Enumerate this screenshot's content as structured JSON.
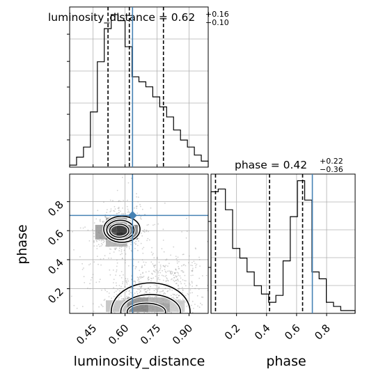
{
  "colors": {
    "truth": "#4682b4",
    "hist": "#000000",
    "grid": "#b0b0b0",
    "points": "#9a9a9a"
  },
  "chart_data": {
    "type": "corner",
    "parameters": [
      "luminosity_distance",
      "phase"
    ],
    "truths": {
      "luminosity_distance": 0.635,
      "phase": 0.705
    },
    "titles": [
      {
        "param": "luminosity_distance",
        "text": "luminosity_distance = 0.62",
        "sup": "+0.16",
        "sub": "−0.10"
      },
      {
        "param": "phase",
        "text": "phase = 0.42",
        "sup": "+0.22",
        "sub": "−0.36"
      }
    ],
    "axis_labels": {
      "x": [
        "luminosity_distance",
        "phase"
      ],
      "y": "phase"
    },
    "luminosity_distance": {
      "range": [
        0.34,
        0.99
      ],
      "ticks": [
        0.45,
        0.6,
        0.75,
        0.9
      ],
      "tick_labels": [
        "0.45",
        "0.60",
        "0.75",
        "0.90"
      ],
      "quantiles": [
        0.52,
        0.62,
        0.78
      ],
      "hist_edges": [
        0.34,
        0.3725,
        0.405,
        0.4375,
        0.47,
        0.5025,
        0.535,
        0.5675,
        0.6,
        0.6325,
        0.665,
        0.6975,
        0.73,
        0.7625,
        0.795,
        0.8275,
        0.86,
        0.8925,
        0.925,
        0.9575,
        0.99
      ],
      "hist_counts": [
        2,
        10,
        20,
        55,
        105,
        138,
        152,
        146,
        120,
        90,
        85,
        80,
        70,
        60,
        50,
        37,
        27,
        20,
        12,
        6
      ]
    },
    "phase": {
      "range": [
        0.03,
        0.99
      ],
      "ticks": [
        0.2,
        0.4,
        0.6,
        0.8
      ],
      "tick_labels": [
        "0.2",
        "0.4",
        "0.6",
        "0.8"
      ],
      "quantiles": [
        0.06,
        0.42,
        0.64
      ],
      "hist_edges": [
        0.03,
        0.078,
        0.126,
        0.174,
        0.222,
        0.27,
        0.318,
        0.366,
        0.414,
        0.462,
        0.51,
        0.558,
        0.606,
        0.654,
        0.702,
        0.75,
        0.798,
        0.846,
        0.894,
        0.942,
        0.99
      ],
      "hist_counts": [
        88,
        90,
        75,
        47,
        40,
        30,
        20,
        14,
        8,
        13,
        38,
        70,
        96,
        82,
        30,
        25,
        8,
        5,
        2,
        2
      ]
    },
    "density_2d": {
      "blobs": [
        {
          "x": 0.565,
          "y": 0.58,
          "sx": 0.05,
          "sy": 0.055,
          "n": 520
        },
        {
          "x": 0.72,
          "y": 0.1,
          "sx": 0.1,
          "sy": 0.07,
          "n": 560
        },
        {
          "x": 0.78,
          "y": 0.3,
          "sx": 0.1,
          "sy": 0.06,
          "n": 200
        },
        {
          "x": 0.6,
          "y": 0.7,
          "sx": 0.07,
          "sy": 0.08,
          "n": 110
        },
        {
          "x": 0.62,
          "y": 0.3,
          "sx": 0.18,
          "sy": 0.22,
          "n": 230
        }
      ],
      "shade_cells": [
        {
          "x0": 0.51,
          "x1": 0.56,
          "y0": 0.59,
          "y1": 0.64,
          "g": 50
        },
        {
          "x0": 0.56,
          "x1": 0.61,
          "y0": 0.59,
          "y1": 0.64,
          "g": 40
        },
        {
          "x0": 0.51,
          "x1": 0.56,
          "y0": 0.54,
          "y1": 0.59,
          "g": 70
        },
        {
          "x0": 0.56,
          "x1": 0.61,
          "y0": 0.54,
          "y1": 0.59,
          "g": 20
        },
        {
          "x0": 0.61,
          "x1": 0.66,
          "y0": 0.54,
          "y1": 0.59,
          "g": 110
        },
        {
          "x0": 0.46,
          "x1": 0.51,
          "y0": 0.54,
          "y1": 0.64,
          "g": 150
        },
        {
          "x0": 0.61,
          "x1": 0.66,
          "y0": 0.59,
          "y1": 0.64,
          "g": 120
        },
        {
          "x0": 0.51,
          "x1": 0.61,
          "y0": 0.64,
          "y1": 0.69,
          "g": 150
        },
        {
          "x0": 0.51,
          "x1": 0.61,
          "y0": 0.49,
          "y1": 0.54,
          "g": 170
        },
        {
          "x0": 0.61,
          "x1": 0.71,
          "y0": 0.04,
          "y1": 0.1,
          "g": 120
        },
        {
          "x0": 0.71,
          "x1": 0.81,
          "y0": 0.04,
          "y1": 0.1,
          "g": 150
        },
        {
          "x0": 0.61,
          "x1": 0.71,
          "y0": 0.1,
          "y1": 0.14,
          "g": 140
        },
        {
          "x0": 0.71,
          "x1": 0.81,
          "y0": 0.1,
          "y1": 0.14,
          "g": 170
        },
        {
          "x0": 0.51,
          "x1": 0.61,
          "y0": 0.04,
          "y1": 0.12,
          "g": 190
        },
        {
          "x0": 0.81,
          "x1": 0.88,
          "y0": 0.04,
          "y1": 0.12,
          "g": 200
        }
      ],
      "contours": [
        {
          "x": 0.573,
          "y": 0.6,
          "rx": 0.045,
          "ry": 0.045
        },
        {
          "x": 0.578,
          "y": 0.605,
          "rx": 0.064,
          "ry": 0.067
        },
        {
          "x": 0.585,
          "y": 0.61,
          "rx": 0.085,
          "ry": 0.09
        },
        {
          "x": 0.7,
          "y": 0.04,
          "rx": 0.09,
          "ry": 0.06
        },
        {
          "x": 0.72,
          "y": 0.04,
          "rx": 0.14,
          "ry": 0.12
        },
        {
          "x": 0.72,
          "y": 0.04,
          "rx": 0.185,
          "ry": 0.2
        }
      ]
    }
  }
}
